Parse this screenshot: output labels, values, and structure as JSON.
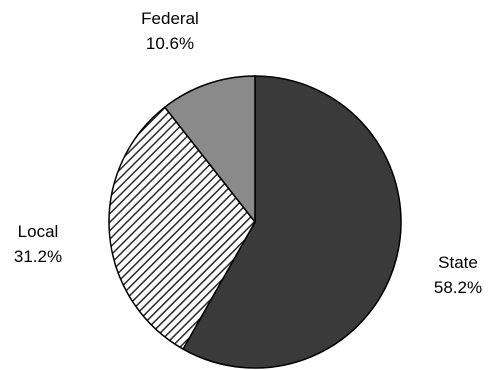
{
  "chart_data": {
    "type": "pie",
    "slices": [
      {
        "name": "State",
        "value": 58.2,
        "label": "58.2%",
        "color": "#3a3a3a",
        "pattern": "solid"
      },
      {
        "name": "Local",
        "value": 31.2,
        "label": "31.2%",
        "color": "#ffffff",
        "pattern": "diagonal-hatch"
      },
      {
        "name": "Federal",
        "value": 10.6,
        "label": "10.6%",
        "color": "#8a8a8a",
        "pattern": "solid"
      }
    ],
    "start_angle": "12 o'clock",
    "direction": "clockwise",
    "legend": "none",
    "label_placement": "outside"
  }
}
